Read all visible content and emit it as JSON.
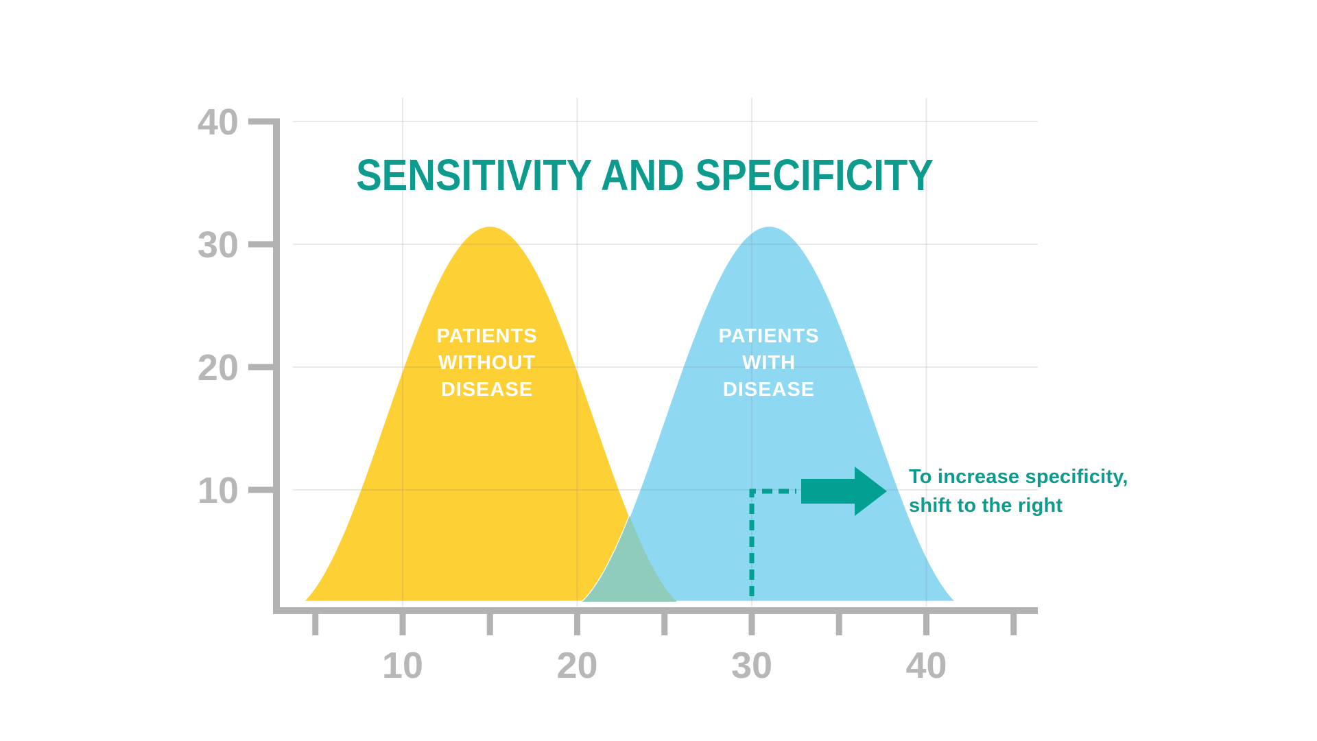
{
  "chart_data": {
    "type": "area",
    "title": "SENSITIVITY AND SPECIFICITY",
    "xlabel": "",
    "ylabel": "",
    "xlim": [
      2.5,
      46.5
    ],
    "ylim": [
      0,
      42
    ],
    "grid": true,
    "x_minor_ticks": [
      5,
      10,
      15,
      20,
      25,
      30,
      35,
      40,
      45
    ],
    "x_tick_labels": [
      10,
      20,
      30,
      40
    ],
    "y_tick_labels": [
      40,
      30,
      20,
      10
    ],
    "series": [
      {
        "name": "PATIENTS WITHOUT DISEASE",
        "label_lines": [
          "PATIENTS",
          "WITHOUT",
          "DISEASE"
        ],
        "shape": "bell",
        "center": 15,
        "peak": 31.5,
        "half_width": 12,
        "color": "#FDD136"
      },
      {
        "name": "PATIENTS WITH DISEASE",
        "label_lines": [
          "PATIENTS",
          "WITH",
          "DISEASE"
        ],
        "shape": "bell",
        "center": 31,
        "peak": 31.5,
        "half_width": 12,
        "color": "#8ED8F2"
      }
    ],
    "overlap": {
      "color": "#8FCCBC",
      "x_range": [
        19,
        27
      ],
      "intersection_x": 23,
      "intersection_y": 8
    },
    "annotation": {
      "lines": [
        "To increase specificity,",
        "shift to the right"
      ],
      "dashed_from_x": 30,
      "dashed_corner_y": 10,
      "arrow_direction": "right",
      "arrow_at_y": 10
    }
  },
  "colors": {
    "title_text": "#0D9B8E",
    "annotation_text": "#0D9B8E",
    "accent_teal": "#02A093",
    "axis": "#B2B2B2",
    "tick_label": "#B7B7B7",
    "grid": "#808080",
    "curve_label_text": "#FFFFFF",
    "curve_outline": "#FFFFFF",
    "background": "#FFFFFF"
  }
}
